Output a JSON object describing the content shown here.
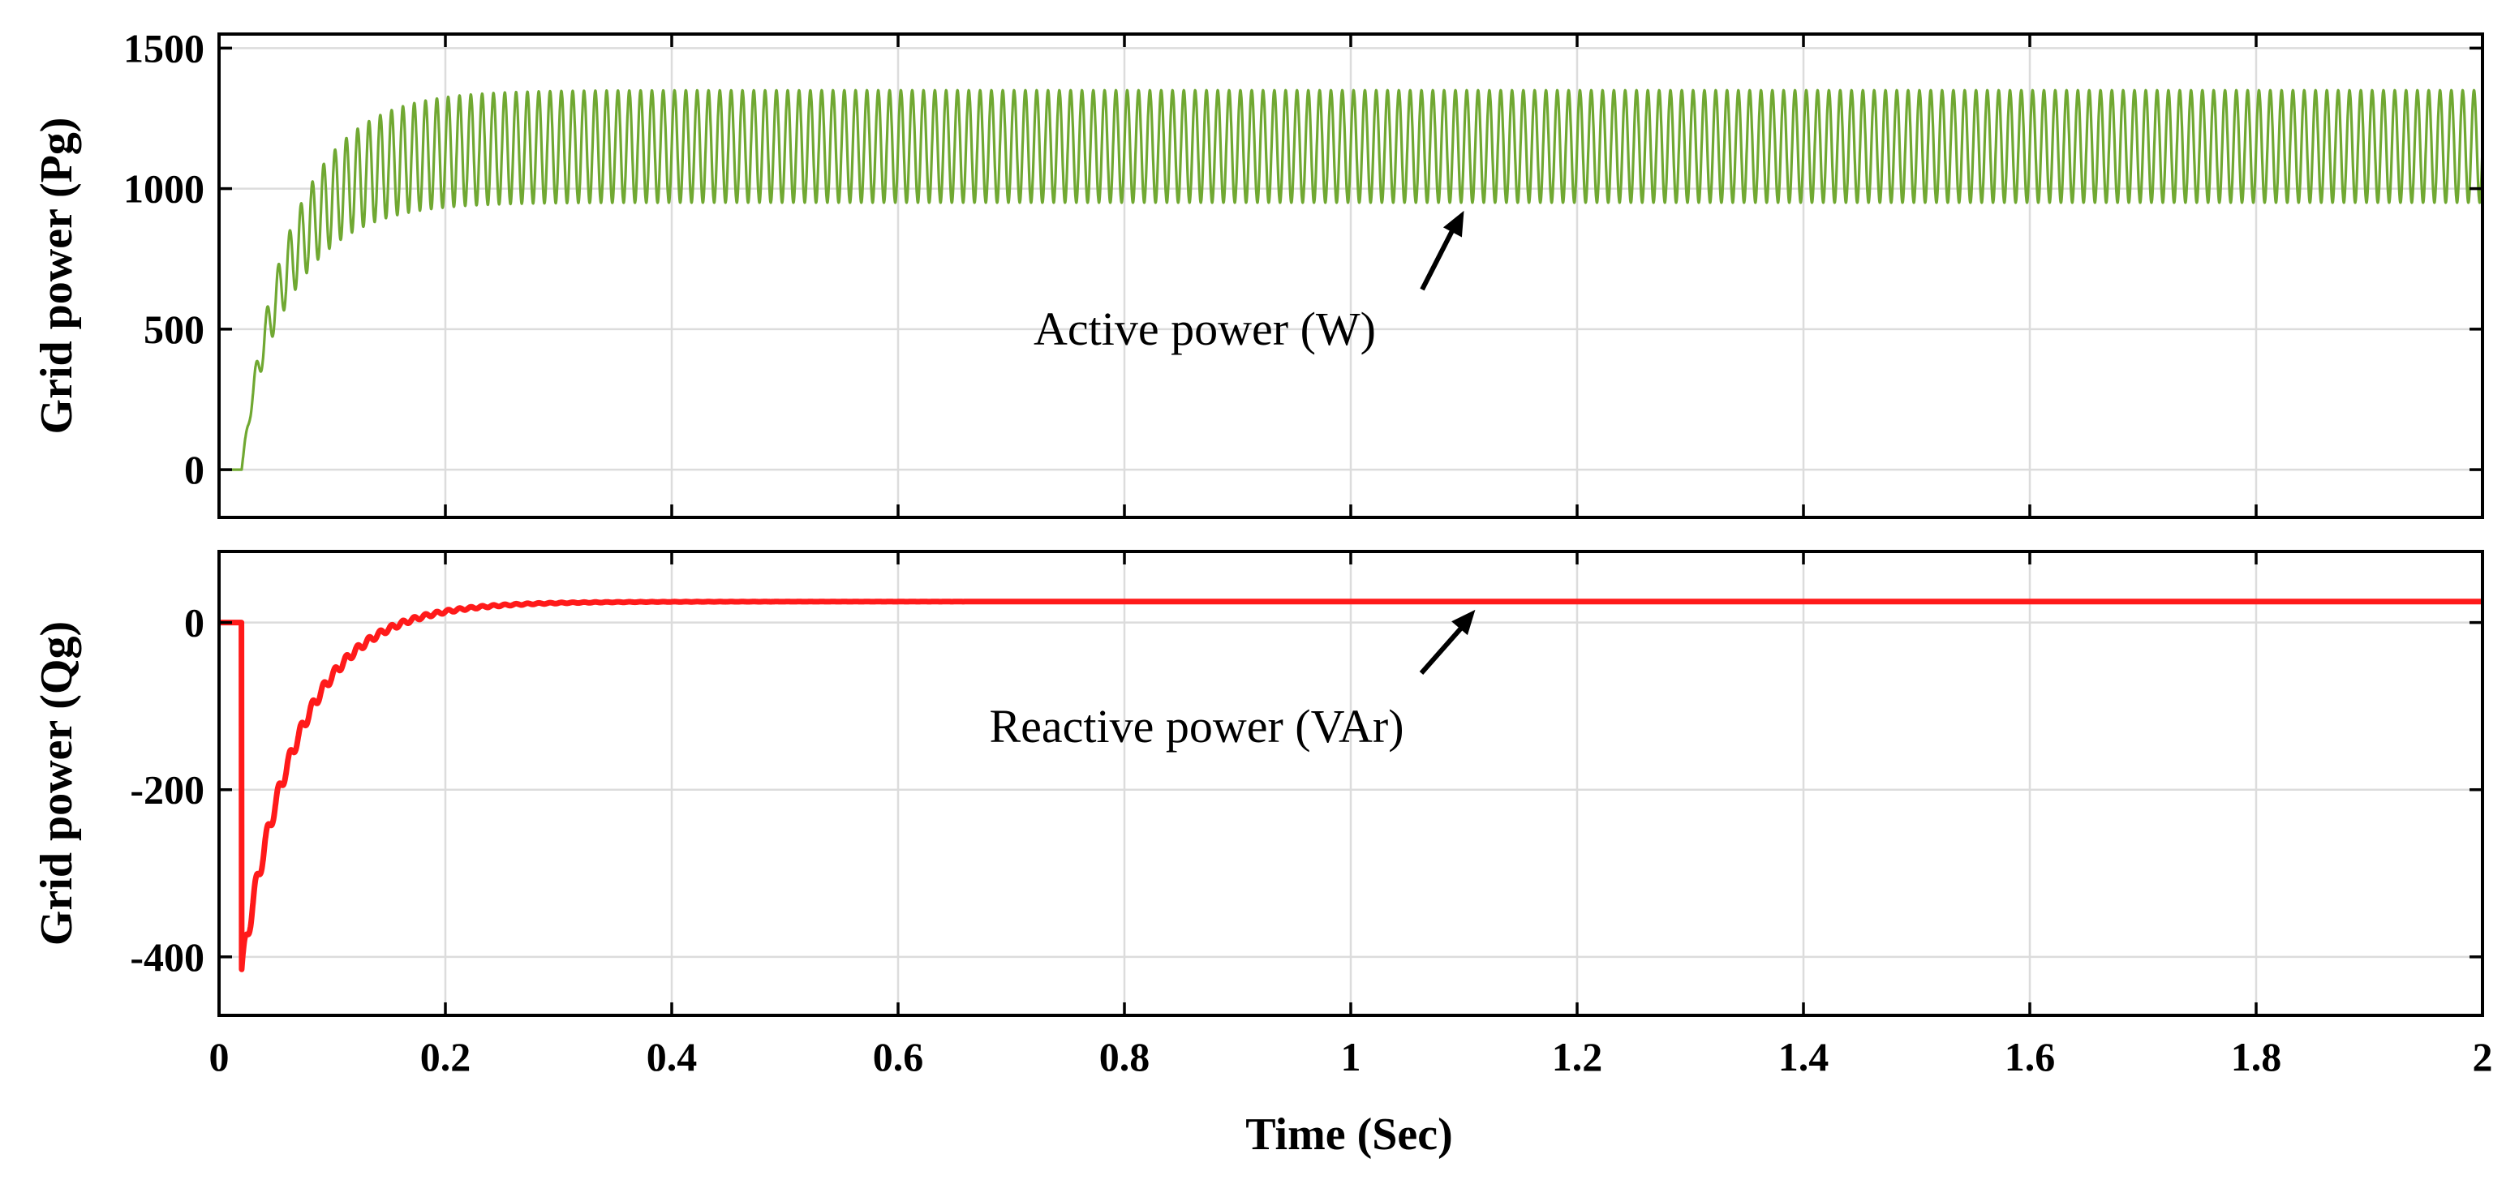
{
  "chart_data": [
    {
      "type": "line",
      "ylabel": "Grid power (Pg)",
      "xlabel": "",
      "xlim": [
        0,
        2
      ],
      "ylim": [
        -170,
        1550
      ],
      "yticks": [
        0,
        500,
        1000,
        1500
      ],
      "ytick_labels": [
        "0",
        "500",
        "1000",
        "1500"
      ],
      "grid": true,
      "series": [
        {
          "name": "Active power (W)",
          "color": "#70a832",
          "description_values": {
            "start_time": 0.02,
            "initial_value": 0,
            "steady_mean": 1150,
            "steady_amplitude": 200,
            "rise_time_constant": 0.045,
            "ripple_frequency_hz": 100
          }
        }
      ],
      "annotation": {
        "text": "Active power (W)",
        "arrow_target": {
          "x": 1.1,
          "y": 950
        }
      }
    },
    {
      "type": "line",
      "ylabel": "Grid power (Qg)",
      "xlabel": "Time (Sec)",
      "xlim": [
        0,
        2
      ],
      "ylim": [
        -470,
        85
      ],
      "yticks": [
        -400,
        -200,
        0
      ],
      "ytick_labels": [
        "-400",
        "-200",
        "0"
      ],
      "xticks": [
        0,
        0.2,
        0.4,
        0.6,
        0.8,
        1,
        1.2,
        1.4,
        1.6,
        1.8,
        2
      ],
      "xtick_labels": [
        "0",
        "0.2",
        "0.4",
        "0.6",
        "0.8",
        "1",
        "1.2",
        "1.4",
        "1.6",
        "1.8",
        "2"
      ],
      "grid": true,
      "series": [
        {
          "name": "Reactive power (VAr)",
          "color": "#ff1a1a",
          "description_values": {
            "start_time": 0.02,
            "initial_value": 0,
            "minimum_value": -415,
            "steady_value": 25,
            "decay_time_constant": 0.05
          }
        }
      ],
      "annotation": {
        "text": "Reactive power (VAr)",
        "arrow_target": {
          "x": 1.11,
          "y": 25
        }
      }
    }
  ]
}
